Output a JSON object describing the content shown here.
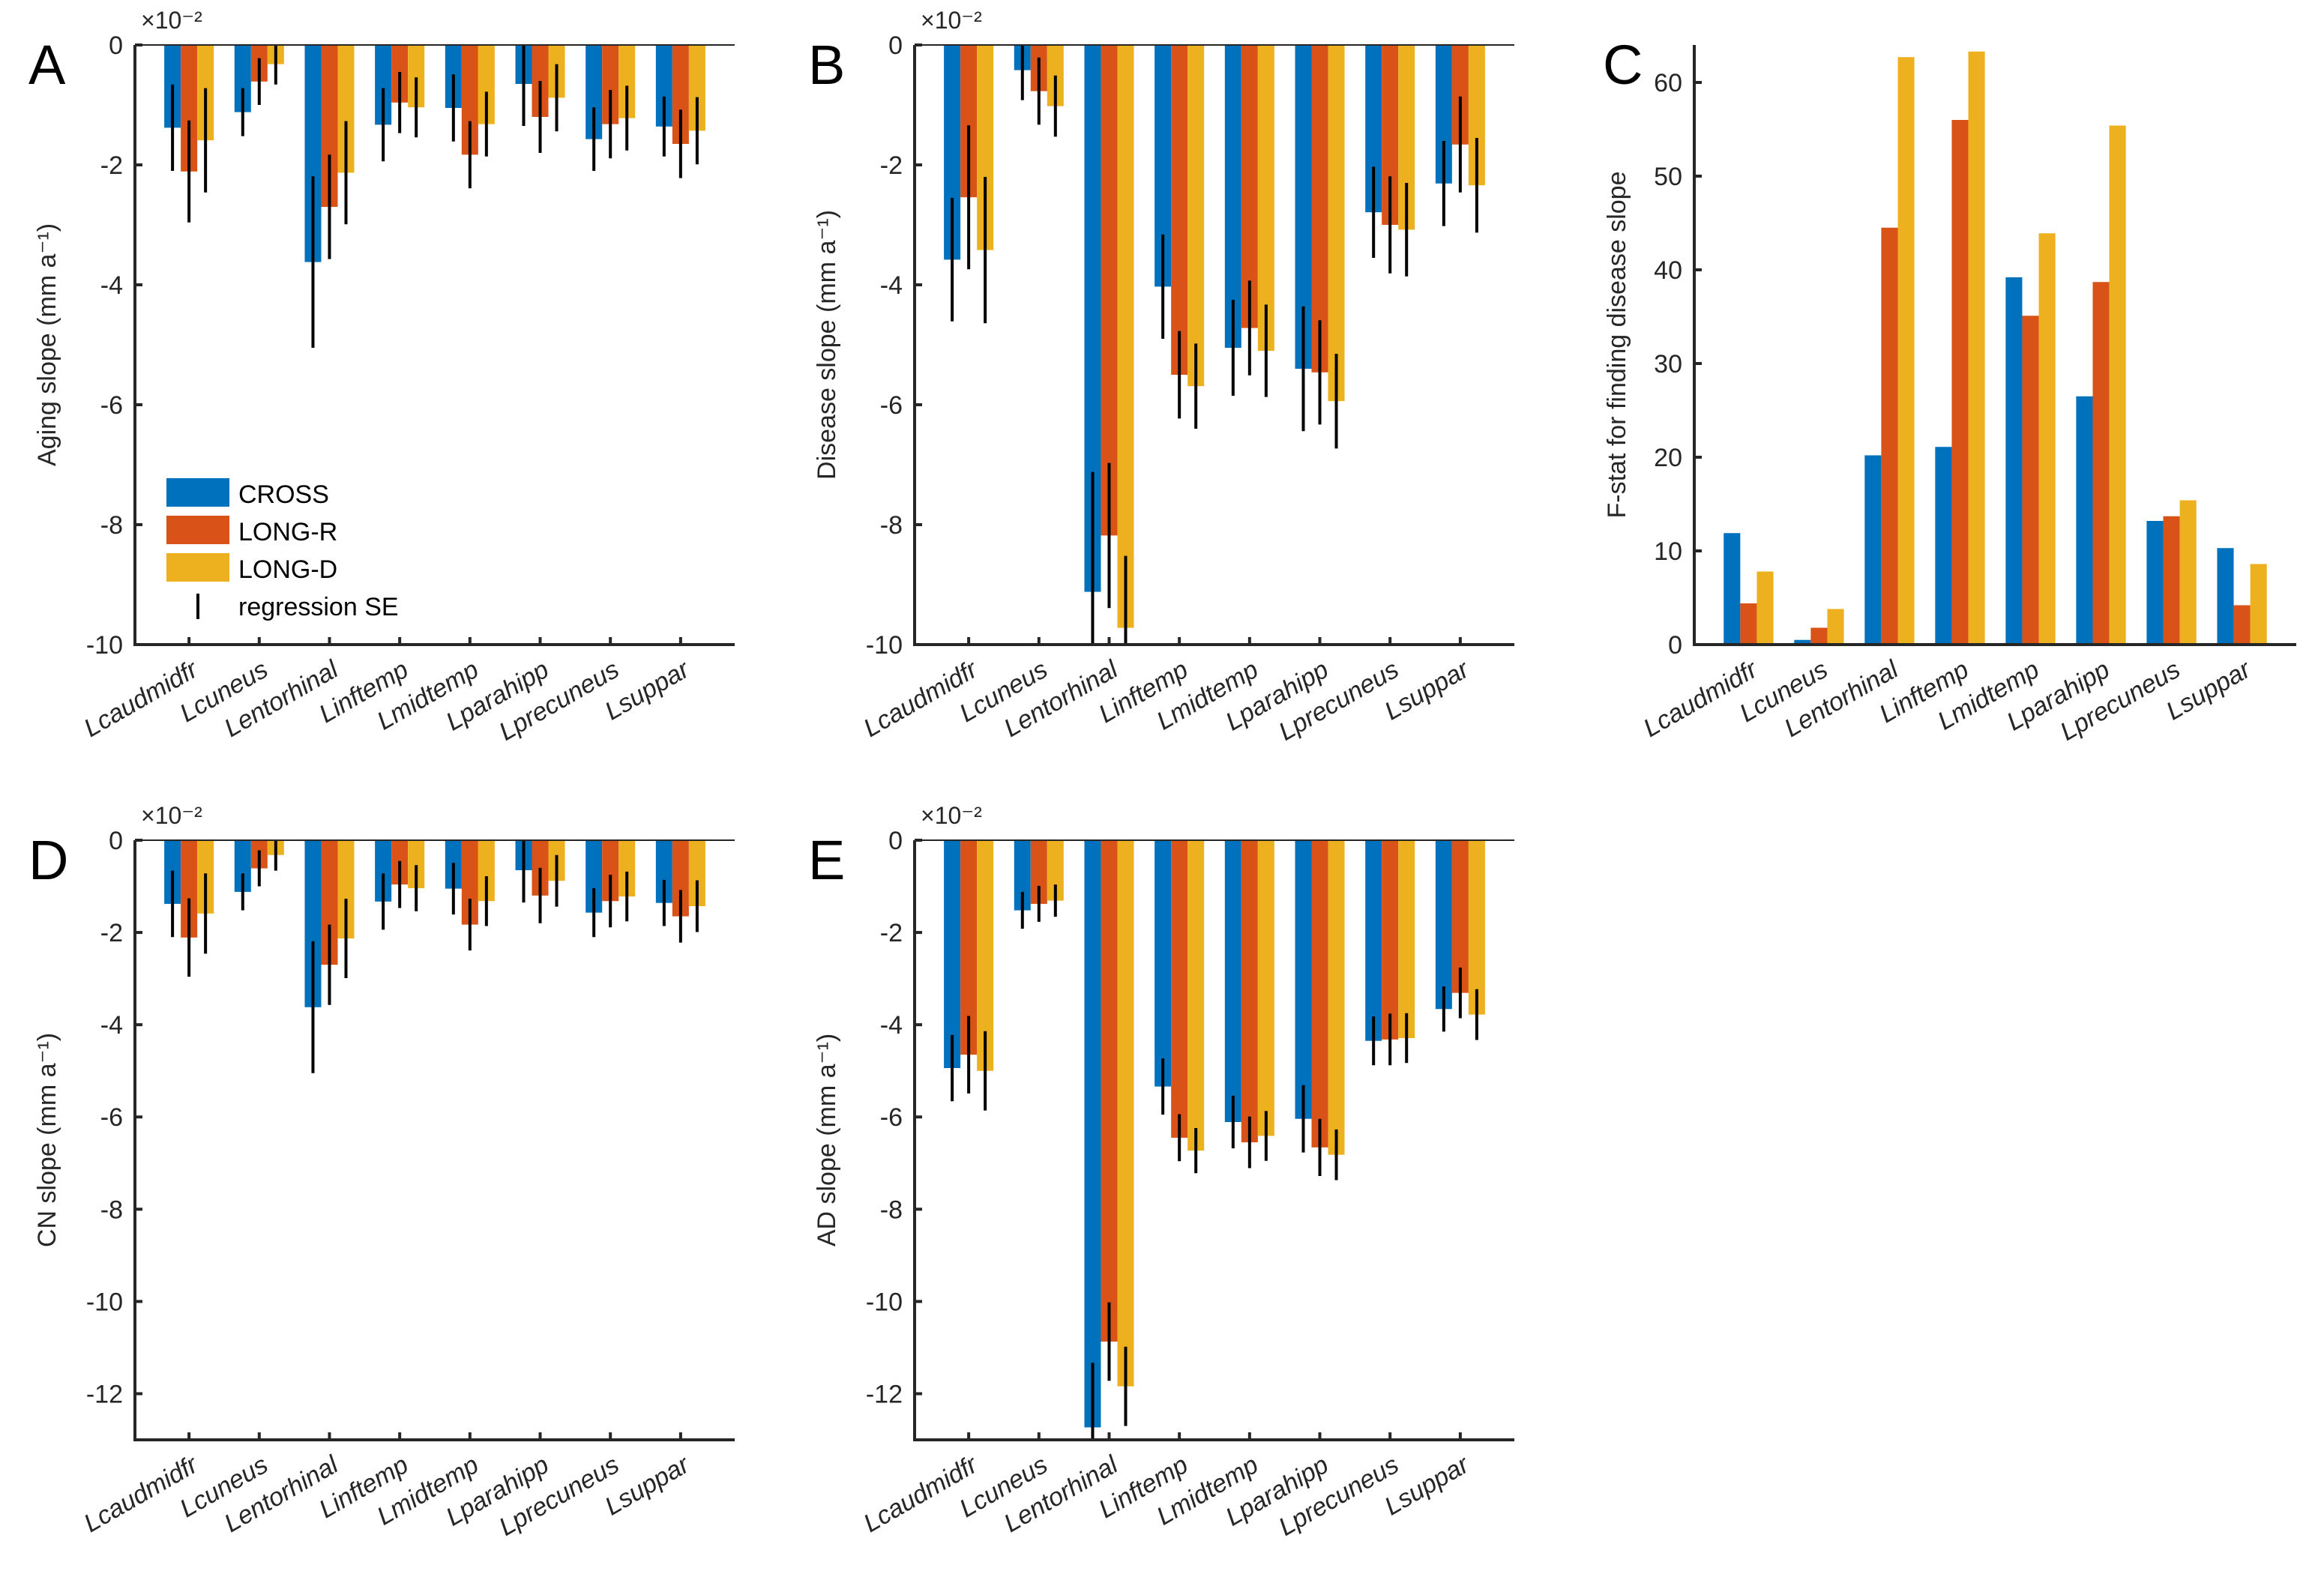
{
  "figure": {
    "legend": {
      "items": [
        {
          "label": "CROSS",
          "color": "#0072BD"
        },
        {
          "label": "LONG-R",
          "color": "#D95319"
        },
        {
          "label": "LONG-D",
          "color": "#EDB120"
        }
      ],
      "errorbar_label": "regression SE",
      "placement": "lower-left of panel A"
    }
  },
  "chart_data": [
    {
      "panel": "A",
      "type": "bar",
      "title": "",
      "xlabel": "",
      "ylabel": "Aging slope (mm a⁻¹)",
      "exponent_label": "×10⁻²",
      "ylim": [
        -10,
        0
      ],
      "yticks": [
        -10,
        -8,
        -6,
        -4,
        -2,
        0
      ],
      "categories": [
        "Lcaudmidfr",
        "Lcuneus",
        "Lentorhinal",
        "Linftemp",
        "Lmidtemp",
        "Lparahipp",
        "Lprecuneus",
        "Lsuppar"
      ],
      "series": [
        {
          "name": "CROSS",
          "values": [
            -1.38,
            -1.12,
            -3.62,
            -1.33,
            -1.05,
            -0.65,
            -1.57,
            -1.36
          ],
          "se": [
            0.72,
            0.4,
            1.43,
            0.61,
            0.56,
            0.7,
            0.53,
            0.5
          ]
        },
        {
          "name": "LONG-R",
          "values": [
            -2.11,
            -0.61,
            -2.7,
            -0.96,
            -1.83,
            -1.2,
            -1.32,
            -1.65
          ],
          "se": [
            0.85,
            0.39,
            0.87,
            0.51,
            0.56,
            0.6,
            0.57,
            0.57
          ]
        },
        {
          "name": "LONG-D",
          "values": [
            -1.59,
            -0.32,
            -2.13,
            -1.04,
            -1.32,
            -0.88,
            -1.22,
            -1.43
          ],
          "se": [
            0.87,
            0.34,
            0.86,
            0.5,
            0.54,
            0.56,
            0.54,
            0.56
          ]
        }
      ],
      "legend": true
    },
    {
      "panel": "B",
      "type": "bar",
      "title": "",
      "xlabel": "",
      "ylabel": "Disease slope (mm a⁻¹)",
      "exponent_label": "×10⁻²",
      "ylim": [
        -10,
        0
      ],
      "yticks": [
        -10,
        -8,
        -6,
        -4,
        -2,
        0
      ],
      "categories": [
        "Lcaudmidfr",
        "Lcuneus",
        "Lentorhinal",
        "Linftemp",
        "Lmidtemp",
        "Lparahipp",
        "Lprecuneus",
        "Lsuppar"
      ],
      "series": [
        {
          "name": "CROSS",
          "values": [
            -3.58,
            -0.42,
            -9.12,
            -4.03,
            -5.05,
            -5.4,
            -2.79,
            -2.31
          ],
          "se": [
            1.03,
            0.5,
            2.0,
            0.87,
            0.8,
            1.04,
            0.76,
            0.71
          ]
        },
        {
          "name": "LONG-R",
          "values": [
            -2.54,
            -0.77,
            -8.18,
            -5.5,
            -4.72,
            -5.46,
            -3.0,
            -1.66
          ],
          "se": [
            1.2,
            0.56,
            1.21,
            0.73,
            0.79,
            0.87,
            0.81,
            0.8
          ]
        },
        {
          "name": "LONG-D",
          "values": [
            -3.42,
            -1.02,
            -9.72,
            -5.69,
            -5.1,
            -5.94,
            -3.08,
            -2.34
          ],
          "se": [
            1.22,
            0.51,
            1.2,
            0.71,
            0.77,
            0.79,
            0.78,
            0.79
          ]
        }
      ],
      "legend": false
    },
    {
      "panel": "C",
      "type": "bar",
      "title": "",
      "xlabel": "",
      "ylabel": "F-stat for finding disease slope",
      "exponent_label": "",
      "ylim": [
        0,
        64
      ],
      "yticks": [
        0,
        10,
        20,
        30,
        40,
        50,
        60
      ],
      "categories": [
        "Lcaudmidfr",
        "Lcuneus",
        "Lentorhinal",
        "Linftemp",
        "Lmidtemp",
        "Lparahipp",
        "Lprecuneus",
        "Lsuppar"
      ],
      "series": [
        {
          "name": "CROSS",
          "values": [
            11.9,
            0.5,
            20.2,
            21.1,
            39.2,
            26.5,
            13.2,
            10.3
          ]
        },
        {
          "name": "LONG-R",
          "values": [
            4.4,
            1.8,
            44.5,
            56.0,
            35.1,
            38.7,
            13.7,
            4.2
          ]
        },
        {
          "name": "LONG-D",
          "values": [
            7.8,
            3.8,
            62.7,
            63.3,
            43.9,
            55.4,
            15.4,
            8.6
          ]
        }
      ],
      "legend": false
    },
    {
      "panel": "D",
      "type": "bar",
      "title": "",
      "xlabel": "",
      "ylabel": "CN slope (mm a⁻¹)",
      "exponent_label": "×10⁻²",
      "ylim": [
        -13,
        0
      ],
      "yticks": [
        -12,
        -10,
        -8,
        -6,
        -4,
        -2,
        0
      ],
      "categories": [
        "Lcaudmidfr",
        "Lcuneus",
        "Lentorhinal",
        "Linftemp",
        "Lmidtemp",
        "Lparahipp",
        "Lprecuneus",
        "Lsuppar"
      ],
      "series": [
        {
          "name": "CROSS",
          "values": [
            -1.38,
            -1.12,
            -3.62,
            -1.33,
            -1.05,
            -0.65,
            -1.57,
            -1.36
          ],
          "se": [
            0.72,
            0.4,
            1.43,
            0.61,
            0.56,
            0.7,
            0.53,
            0.5
          ]
        },
        {
          "name": "LONG-R",
          "values": [
            -2.11,
            -0.61,
            -2.7,
            -0.96,
            -1.83,
            -1.2,
            -1.32,
            -1.65
          ],
          "se": [
            0.85,
            0.39,
            0.87,
            0.51,
            0.56,
            0.6,
            0.57,
            0.57
          ]
        },
        {
          "name": "LONG-D",
          "values": [
            -1.59,
            -0.32,
            -2.13,
            -1.04,
            -1.32,
            -0.88,
            -1.22,
            -1.43
          ],
          "se": [
            0.87,
            0.34,
            0.86,
            0.5,
            0.54,
            0.56,
            0.54,
            0.56
          ]
        }
      ],
      "legend": false
    },
    {
      "panel": "E",
      "type": "bar",
      "title": "",
      "xlabel": "",
      "ylabel": "AD slope (mm a⁻¹)",
      "exponent_label": "×10⁻²",
      "ylim": [
        -13,
        0
      ],
      "yticks": [
        -12,
        -10,
        -8,
        -6,
        -4,
        -2,
        0
      ],
      "categories": [
        "Lcaudmidfr",
        "Lcuneus",
        "Lentorhinal",
        "Linftemp",
        "Lmidtemp",
        "Lparahipp",
        "Lprecuneus",
        "Lsuppar"
      ],
      "series": [
        {
          "name": "CROSS",
          "values": [
            -4.94,
            -1.52,
            -12.73,
            -5.34,
            -6.11,
            -6.04,
            -4.35,
            -3.66
          ],
          "se": [
            0.72,
            0.4,
            1.4,
            0.61,
            0.57,
            0.73,
            0.53,
            0.49
          ]
        },
        {
          "name": "LONG-R",
          "values": [
            -4.65,
            -1.38,
            -10.87,
            -6.45,
            -6.55,
            -6.66,
            -4.32,
            -3.31
          ],
          "se": [
            0.84,
            0.39,
            0.85,
            0.51,
            0.56,
            0.62,
            0.56,
            0.55
          ]
        },
        {
          "name": "LONG-D",
          "values": [
            -5.0,
            -1.31,
            -11.84,
            -6.73,
            -6.41,
            -6.82,
            -4.29,
            -3.78
          ],
          "se": [
            0.86,
            0.35,
            0.86,
            0.49,
            0.54,
            0.55,
            0.54,
            0.55
          ]
        }
      ],
      "legend": false
    }
  ]
}
